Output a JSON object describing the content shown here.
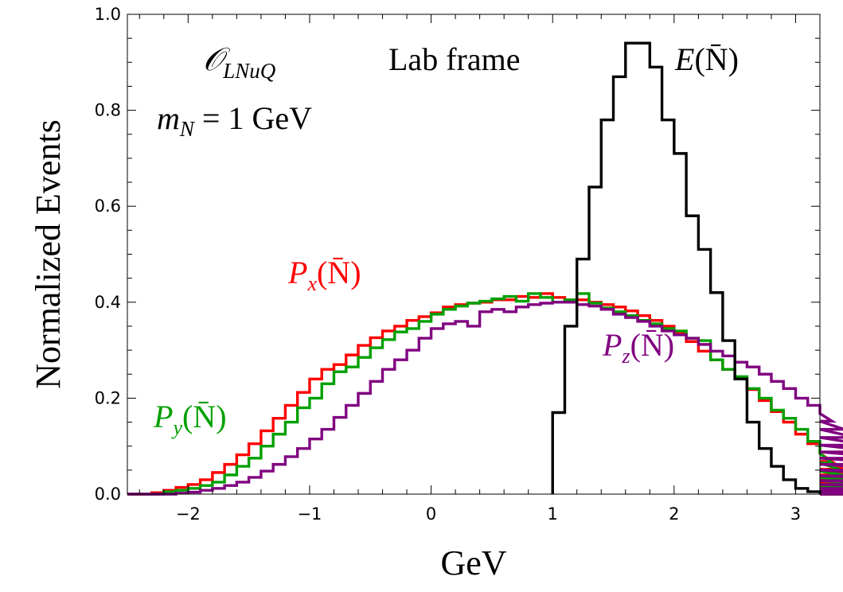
{
  "chart_data": {
    "type": "step",
    "xlabel": "GeV",
    "ylabel": "Normalized Events",
    "xlim": [
      -2.5,
      3.2
    ],
    "ylim": [
      0,
      1.0
    ],
    "x_ticks": [
      -2,
      -1,
      0,
      1,
      2,
      3
    ],
    "x_tick_labels": [
      "−2",
      "−1",
      "0",
      "1",
      "2",
      "3"
    ],
    "y_ticks": [
      0,
      0.2,
      0.4,
      0.6,
      0.8,
      1.0
    ],
    "y_tick_labels": [
      "0.0",
      "0.2",
      "0.4",
      "0.6",
      "0.8",
      "1.0"
    ],
    "grid": false,
    "annotations": {
      "operator": {
        "main": "𝒪",
        "sub": "LNuQ"
      },
      "frame": "Lab frame",
      "mass": {
        "m": "m",
        "sub": "N",
        "rest": " = 1 GeV"
      }
    },
    "series": [
      {
        "name": "P_x(N̄)",
        "label": {
          "main": "P",
          "sub": "x",
          "rest": "(N̄)"
        },
        "color": "#ff0000",
        "x0": -2.5,
        "bin_width": 0.1,
        "values": [
          0,
          0,
          0.003,
          0.008,
          0.014,
          0.02,
          0.03,
          0.045,
          0.062,
          0.082,
          0.105,
          0.132,
          0.158,
          0.185,
          0.212,
          0.24,
          0.26,
          0.27,
          0.29,
          0.31,
          0.326,
          0.34,
          0.35,
          0.362,
          0.37,
          0.378,
          0.39,
          0.395,
          0.398,
          0.4,
          0.405,
          0.405,
          0.412,
          0.41,
          0.418,
          0.41,
          0.405,
          0.405,
          0.4,
          0.395,
          0.39,
          0.382,
          0.372,
          0.362,
          0.35,
          0.336,
          0.318,
          0.298,
          0.28,
          0.26,
          0.24,
          0.218,
          0.195,
          0.172,
          0.15,
          0.125,
          0.105,
          0.085,
          0.068,
          0.052,
          0.04,
          0.03,
          0.022,
          0.015,
          0.01,
          0.006,
          0.003,
          0.002,
          0.001,
          0,
          0,
          0,
          0,
          0,
          0,
          0,
          0
        ]
      },
      {
        "name": "P_y(N̄)",
        "label": {
          "main": "P",
          "sub": "y",
          "rest": "(N̄)"
        },
        "color": "#00a000",
        "x0": -2.5,
        "bin_width": 0.1,
        "values": [
          0,
          0,
          0,
          0.005,
          0.008,
          0.012,
          0.018,
          0.025,
          0.04,
          0.058,
          0.075,
          0.1,
          0.125,
          0.15,
          0.18,
          0.2,
          0.23,
          0.255,
          0.265,
          0.285,
          0.305,
          0.322,
          0.338,
          0.345,
          0.36,
          0.375,
          0.385,
          0.392,
          0.398,
          0.402,
          0.407,
          0.412,
          0.402,
          0.418,
          0.41,
          0.4,
          0.405,
          0.418,
          0.398,
          0.388,
          0.38,
          0.372,
          0.362,
          0.355,
          0.345,
          0.34,
          0.325,
          0.32,
          0.28,
          0.26,
          0.245,
          0.22,
          0.2,
          0.175,
          0.158,
          0.135,
          0.11,
          0.085,
          0.065,
          0.048,
          0.035,
          0.028,
          0.018,
          0.015,
          0.01,
          0.005,
          0.003,
          0.002,
          0.001,
          0,
          0,
          0,
          0,
          0,
          0,
          0,
          0
        ]
      },
      {
        "name": "P_z(N̄)",
        "label": {
          "main": "P",
          "sub": "z",
          "rest": "(N̄)"
        },
        "color": "#800080",
        "x0": -2.5,
        "bin_width": 0.1,
        "values": [
          0,
          0,
          0,
          0,
          0.002,
          0.004,
          0.008,
          0.012,
          0.018,
          0.025,
          0.035,
          0.048,
          0.062,
          0.078,
          0.095,
          0.115,
          0.135,
          0.16,
          0.185,
          0.21,
          0.235,
          0.26,
          0.28,
          0.3,
          0.325,
          0.345,
          0.355,
          0.36,
          0.35,
          0.38,
          0.385,
          0.38,
          0.39,
          0.395,
          0.398,
          0.4,
          0.4,
          0.395,
          0.392,
          0.385,
          0.375,
          0.368,
          0.36,
          0.35,
          0.34,
          0.332,
          0.325,
          0.312,
          0.298,
          0.288,
          0.275,
          0.265,
          0.25,
          0.235,
          0.22,
          0.2,
          0.185,
          0.168,
          0.152,
          0.135,
          0.118,
          0.102,
          0.088,
          0.075,
          0.062,
          0.05,
          0.038,
          0.028,
          0.02,
          0.012,
          0.006,
          0.003,
          0.001,
          0,
          0,
          0,
          0
        ]
      },
      {
        "name": "E(N̄)",
        "label": {
          "main": "E",
          "sub": "",
          "rest": "(N̄)"
        },
        "color": "#000000",
        "x0": 1.0,
        "bin_width": 0.1,
        "values": [
          0.17,
          0.35,
          0.49,
          0.64,
          0.78,
          0.87,
          0.94,
          0.94,
          0.89,
          0.78,
          0.71,
          0.58,
          0.51,
          0.42,
          0.32,
          0.24,
          0.15,
          0.095,
          0.058,
          0.03,
          0.012,
          0.005,
          0
        ]
      }
    ]
  }
}
